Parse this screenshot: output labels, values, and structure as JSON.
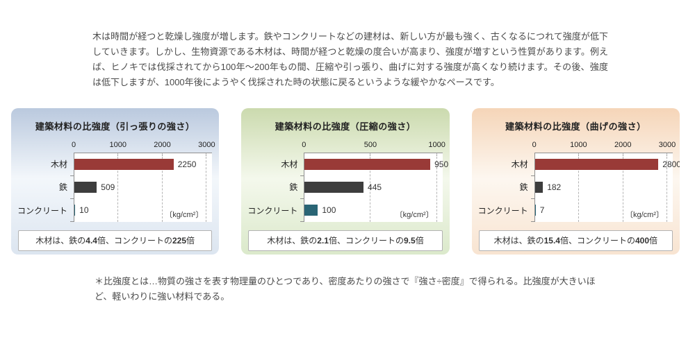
{
  "intro": {
    "text": "木は時間が経つと乾燥し強度が増します。鉄やコンクリートなどの建材は、新しい方が最も強く、古くなるにつれて強度が低下していきます。しかし、生物資源である木材は、時間が経つと乾燥の度合いが高まり、強度が増すという性質があります。例えば、ヒノキでは伐採されてから100年〜200年もの間、圧縮や引っ張り、曲げに対する強度が高くなり続けます。その後、強度は低下しますが、1000年後にようやく伐採された時の状態に戻るというような緩やかなペースです。"
  },
  "footnote": {
    "text": "＊比強度とは…物質の強さを表す物理量のひとつであり、密度あたりの強さで『強さ÷密度』で得られる。比強度が大きいほど、軽いわりに強い材料である。"
  },
  "chart_data": [
    {
      "type": "bar",
      "title": "建築材料の比強度（引っ張りの強さ）",
      "categories": [
        "木材",
        "鉄",
        "コンクリート"
      ],
      "values": [
        2250,
        509,
        10
      ],
      "xticks": [
        0,
        1000,
        2000,
        3000
      ],
      "xlim": [
        0,
        3000
      ],
      "unit": "〔kg/cm²〕",
      "grid": true,
      "legend_position": "none",
      "bar_colors": [
        "#993a37",
        "#3d3d3d",
        "#2a6575"
      ],
      "panel_bg": [
        "#bac9de",
        "#f3f7fb",
        "#dce5f0"
      ],
      "caption": {
        "lead": "木材は、鉄の",
        "steel_ratio": "4.4",
        "mid": "倍、コンクリートの",
        "concrete_ratio": "225",
        "tail": "倍"
      }
    },
    {
      "type": "bar",
      "title": "建築材料の比強度（圧縮の強さ）",
      "categories": [
        "木材",
        "鉄",
        "コンクリート"
      ],
      "values": [
        950,
        445,
        100
      ],
      "xticks": [
        0,
        500,
        1000
      ],
      "xlim": [
        0,
        1000
      ],
      "unit": "〔kg/cm²〕",
      "grid": true,
      "legend_position": "none",
      "bar_colors": [
        "#993a37",
        "#3d3d3d",
        "#2a6575"
      ],
      "panel_bg": [
        "#cbdaae",
        "#f4f8ec",
        "#dbe9cb"
      ],
      "caption": {
        "lead": "木材は、鉄の",
        "steel_ratio": "2.1",
        "mid": "倍、コンクリートの",
        "concrete_ratio": "9.5",
        "tail": "倍"
      }
    },
    {
      "type": "bar",
      "title": "建築材料の比強度（曲げの強さ）",
      "categories": [
        "木材",
        "鉄",
        "コンクリート"
      ],
      "values": [
        2800,
        182,
        7
      ],
      "xticks": [
        0,
        1000,
        2000,
        3000
      ],
      "xlim": [
        0,
        3000
      ],
      "unit": "〔kg/cm²〕",
      "grid": true,
      "legend_position": "none",
      "bar_colors": [
        "#993a37",
        "#3d3d3d",
        "#2a6575"
      ],
      "panel_bg": [
        "#f5d5b8",
        "#fdf7f0",
        "#f8e4d1"
      ],
      "caption": {
        "lead": "木材は、鉄の",
        "steel_ratio": "15.4",
        "mid": "倍、コンクリートの",
        "concrete_ratio": "400",
        "tail": "倍"
      }
    }
  ]
}
